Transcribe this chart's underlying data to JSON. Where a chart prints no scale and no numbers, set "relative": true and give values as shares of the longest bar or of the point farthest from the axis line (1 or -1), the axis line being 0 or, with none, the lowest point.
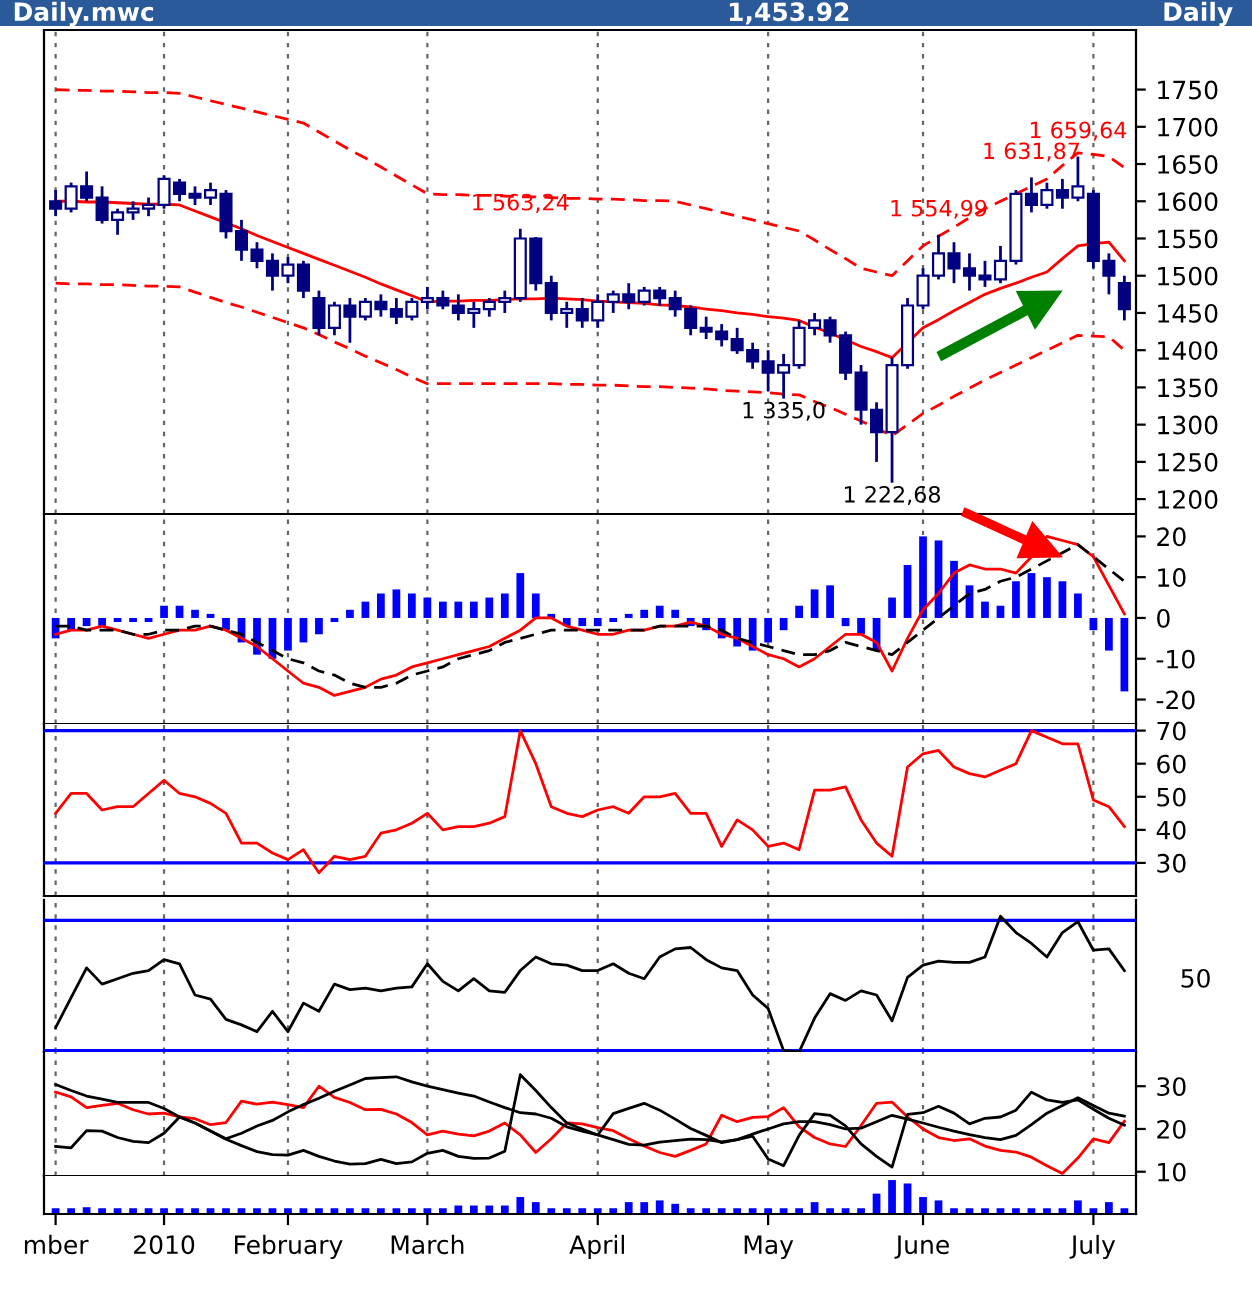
{
  "chart_data": [
    {
      "type": "candlestick",
      "title": "Daily.mwc",
      "subtitle": "1,453.92",
      "annotations": [
        "Daily",
        {
          "text": "1 563,24",
          "y": 1563
        },
        {
          "text": "1 554,99",
          "y": 1555
        },
        {
          "text": "1 631,87",
          "y": 1632
        },
        {
          "text": "1 659,64",
          "y": 1660
        },
        {
          "text": "1 335,0",
          "y": 1335
        },
        {
          "text": "1 222,68",
          "y": 1222
        }
      ],
      "categories": [
        null,
        null,
        null,
        null,
        null,
        null,
        null,
        null,
        null,
        null,
        null,
        null,
        null,
        null,
        null,
        null,
        null,
        null,
        null,
        null,
        null,
        null,
        null,
        null,
        null,
        null,
        null,
        null,
        null,
        null,
        null,
        null,
        null,
        null,
        null,
        null,
        null,
        null,
        null,
        null,
        null,
        null,
        null,
        null,
        null,
        null,
        null,
        null,
        null,
        null,
        null,
        null,
        null,
        null,
        null,
        null,
        null,
        null,
        null,
        null,
        null,
        null,
        null,
        null,
        null,
        null,
        null,
        null,
        null,
        null
      ],
      "ohlc": [
        [
          1600,
          1615,
          1580,
          1590
        ],
        [
          1590,
          1625,
          1585,
          1620
        ],
        [
          1620,
          1640,
          1600,
          1605
        ],
        [
          1605,
          1620,
          1570,
          1575
        ],
        [
          1575,
          1590,
          1555,
          1585
        ],
        [
          1585,
          1600,
          1575,
          1590
        ],
        [
          1590,
          1605,
          1580,
          1595
        ],
        [
          1595,
          1635,
          1590,
          1630
        ],
        [
          1625,
          1630,
          1600,
          1610
        ],
        [
          1610,
          1620,
          1595,
          1605
        ],
        [
          1605,
          1625,
          1595,
          1615
        ],
        [
          1610,
          1615,
          1550,
          1560
        ],
        [
          1560,
          1575,
          1520,
          1535
        ],
        [
          1535,
          1545,
          1510,
          1520
        ],
        [
          1520,
          1530,
          1480,
          1500
        ],
        [
          1500,
          1525,
          1490,
          1515
        ],
        [
          1515,
          1520,
          1470,
          1480
        ],
        [
          1470,
          1480,
          1420,
          1430
        ],
        [
          1430,
          1465,
          1420,
          1460
        ],
        [
          1460,
          1470,
          1410,
          1445
        ],
        [
          1445,
          1470,
          1440,
          1465
        ],
        [
          1465,
          1475,
          1445,
          1455
        ],
        [
          1455,
          1470,
          1435,
          1445
        ],
        [
          1445,
          1470,
          1440,
          1465
        ],
        [
          1465,
          1485,
          1455,
          1470
        ],
        [
          1470,
          1480,
          1455,
          1460
        ],
        [
          1460,
          1475,
          1440,
          1450
        ],
        [
          1450,
          1465,
          1430,
          1455
        ],
        [
          1455,
          1470,
          1445,
          1465
        ],
        [
          1465,
          1480,
          1450,
          1470
        ],
        [
          1470,
          1563,
          1465,
          1550
        ],
        [
          1550,
          1552,
          1480,
          1490
        ],
        [
          1490,
          1500,
          1440,
          1450
        ],
        [
          1450,
          1465,
          1430,
          1455
        ],
        [
          1455,
          1470,
          1430,
          1440
        ],
        [
          1440,
          1475,
          1430,
          1465
        ],
        [
          1465,
          1480,
          1450,
          1475
        ],
        [
          1475,
          1490,
          1455,
          1465
        ],
        [
          1465,
          1485,
          1460,
          1480
        ],
        [
          1480,
          1485,
          1460,
          1470
        ],
        [
          1470,
          1480,
          1445,
          1455
        ],
        [
          1455,
          1460,
          1420,
          1430
        ],
        [
          1430,
          1445,
          1415,
          1425
        ],
        [
          1425,
          1435,
          1405,
          1415
        ],
        [
          1415,
          1430,
          1395,
          1400
        ],
        [
          1400,
          1410,
          1375,
          1385
        ],
        [
          1385,
          1400,
          1345,
          1370
        ],
        [
          1370,
          1395,
          1335,
          1380
        ],
        [
          1380,
          1440,
          1375,
          1430
        ],
        [
          1430,
          1450,
          1420,
          1440
        ],
        [
          1440,
          1445,
          1410,
          1420
        ],
        [
          1420,
          1425,
          1360,
          1370
        ],
        [
          1370,
          1380,
          1300,
          1320
        ],
        [
          1320,
          1330,
          1250,
          1290
        ],
        [
          1290,
          1390,
          1222,
          1380
        ],
        [
          1380,
          1470,
          1375,
          1460
        ],
        [
          1460,
          1510,
          1455,
          1500
        ],
        [
          1500,
          1555,
          1495,
          1530
        ],
        [
          1530,
          1545,
          1490,
          1510
        ],
        [
          1510,
          1530,
          1480,
          1500
        ],
        [
          1500,
          1520,
          1485,
          1495
        ],
        [
          1495,
          1540,
          1490,
          1520
        ],
        [
          1520,
          1615,
          1515,
          1610
        ],
        [
          1610,
          1632,
          1585,
          1595
        ],
        [
          1595,
          1625,
          1590,
          1615
        ],
        [
          1615,
          1630,
          1590,
          1605
        ],
        [
          1605,
          1660,
          1600,
          1620
        ],
        [
          1610,
          1615,
          1510,
          1520
        ],
        [
          1520,
          1530,
          1475,
          1500
        ],
        [
          1490,
          1500,
          1440,
          1455
        ]
      ],
      "series": [
        {
          "type": "line",
          "color": "#ff0000",
          "line_style": "solid",
          "values": [
            1600,
            1600,
            1599,
            1599,
            1598,
            1597,
            1596,
            1596,
            1595,
            1587,
            1579,
            1571,
            1563,
            1554,
            1546,
            1538,
            1530,
            1522,
            1514,
            1506,
            1498,
            1489,
            1481,
            1473,
            1465,
            1466,
            1466,
            1467,
            1467,
            1468,
            1469,
            1469,
            1470,
            1469,
            1468,
            1466,
            1465,
            1464,
            1463,
            1461,
            1460,
            1458,
            1455,
            1453,
            1450,
            1448,
            1445,
            1443,
            1440,
            1431,
            1423,
            1414,
            1405,
            1398,
            1390,
            1410,
            1430,
            1441,
            1453,
            1464,
            1475,
            1483,
            1490,
            1498,
            1505,
            1523,
            1540,
            1543,
            1545,
            1520
          ]
        },
        {
          "type": "line",
          "color": "#ff0000",
          "line_style": "dashed",
          "values": [
            1750,
            1749,
            1749,
            1748,
            1748,
            1747,
            1746,
            1746,
            1745,
            1740,
            1735,
            1730,
            1725,
            1720,
            1715,
            1710,
            1705,
            1693,
            1681,
            1669,
            1658,
            1646,
            1634,
            1622,
            1610,
            1609,
            1609,
            1608,
            1608,
            1607,
            1606,
            1606,
            1605,
            1604,
            1604,
            1603,
            1603,
            1602,
            1601,
            1601,
            1600,
            1595,
            1590,
            1585,
            1580,
            1575,
            1570,
            1565,
            1560,
            1548,
            1535,
            1523,
            1510,
            1505,
            1500,
            1520,
            1540,
            1553,
            1565,
            1578,
            1590,
            1600,
            1610,
            1620,
            1630,
            1648,
            1665,
            1663,
            1660,
            1645
          ]
        },
        {
          "type": "line",
          "color": "#ff0000",
          "line_style": "dashed",
          "values": [
            1490,
            1489,
            1489,
            1488,
            1488,
            1487,
            1486,
            1486,
            1485,
            1478,
            1471,
            1464,
            1458,
            1451,
            1444,
            1437,
            1430,
            1421,
            1411,
            1402,
            1392,
            1383,
            1374,
            1364,
            1355,
            1355,
            1355,
            1355,
            1355,
            1355,
            1355,
            1355,
            1355,
            1354,
            1354,
            1353,
            1353,
            1352,
            1351,
            1351,
            1350,
            1349,
            1348,
            1346,
            1345,
            1344,
            1343,
            1341,
            1340,
            1331,
            1323,
            1314,
            1305,
            1295,
            1285,
            1300,
            1315,
            1326,
            1338,
            1349,
            1360,
            1370,
            1380,
            1390,
            1400,
            1410,
            1420,
            1419,
            1418,
            1400
          ]
        }
      ],
      "ylim": [
        1180,
        1830
      ],
      "yticks": [
        1200,
        1250,
        1300,
        1350,
        1400,
        1450,
        1500,
        1550,
        1600,
        1650,
        1700,
        1750
      ],
      "grid": "x",
      "tick_labels": "y"
    },
    {
      "type": "bar",
      "color": "#0000ff",
      "categories": [
        null,
        null,
        null,
        null,
        null,
        null,
        null,
        null,
        null,
        null,
        null,
        null,
        null,
        null,
        null,
        null,
        null,
        null,
        null,
        null,
        null,
        null,
        null,
        null,
        null,
        null,
        null,
        null,
        null,
        null,
        null,
        null,
        null,
        null,
        null,
        null,
        null,
        null,
        null,
        null,
        null,
        null,
        null,
        null,
        null,
        null,
        null,
        null,
        null,
        null,
        null,
        null,
        null,
        null,
        null,
        null,
        null,
        null,
        null,
        null,
        null,
        null,
        null,
        null,
        null,
        null,
        null,
        null,
        null,
        null
      ],
      "values": [
        -5,
        -3,
        -2,
        -2,
        -1,
        -1,
        -1,
        3,
        3,
        2,
        1,
        -3,
        -6,
        -9,
        -10,
        -8,
        -6,
        -4,
        -1,
        2,
        4,
        6,
        7,
        6,
        5,
        4,
        4,
        4,
        5,
        6,
        11,
        6,
        1,
        -2,
        -2,
        -2,
        -1,
        1,
        2,
        3,
        2,
        -2,
        -3,
        -5,
        -7,
        -8,
        -6,
        -3,
        3,
        7,
        8,
        -2,
        -4,
        -8,
        5,
        13,
        20,
        19,
        14,
        8,
        4,
        3,
        9,
        11,
        10,
        9,
        6,
        -3,
        -8,
        -18
      ],
      "series": [
        {
          "type": "line",
          "color": "#ff0000",
          "line_style": "solid",
          "values": [
            -4,
            -3,
            -3,
            -2,
            -3,
            -4,
            -5,
            -4,
            -3,
            -3,
            -2,
            -3,
            -5,
            -7,
            -10,
            -13,
            -16,
            -17,
            -19,
            -18,
            -17,
            -15,
            -14,
            -12,
            -11,
            -10,
            -9,
            -8,
            -7,
            -5,
            -3,
            0,
            0,
            -2,
            -3,
            -4,
            -4,
            -3,
            -3,
            -2,
            -2,
            -1,
            -2,
            -4,
            -5,
            -7,
            -9,
            -10,
            -12,
            -10,
            -7,
            -4,
            -4,
            -6,
            -13,
            -5,
            2,
            6,
            11,
            13,
            12,
            12,
            11,
            15,
            20,
            19,
            18,
            15,
            8,
            1
          ]
        },
        {
          "type": "line",
          "color": "#000000",
          "line_style": "dashed",
          "values": [
            -2,
            -2,
            -3,
            -3,
            -3,
            -4,
            -4,
            -3,
            -3,
            -2,
            -2,
            -3,
            -4,
            -6,
            -8,
            -10,
            -11,
            -13,
            -14,
            -16,
            -17,
            -17,
            -16,
            -14,
            -13,
            -12,
            -10,
            -9,
            -8,
            -6,
            -5,
            -4,
            -3,
            -3,
            -3,
            -3,
            -3,
            -3,
            -3,
            -2,
            -2,
            -2,
            -2,
            -3,
            -5,
            -6,
            -7,
            -8,
            -9,
            -9,
            -8,
            -6,
            -7,
            -8,
            -9,
            -6,
            -3,
            0,
            3,
            6,
            7,
            9,
            10,
            12,
            14,
            16,
            18,
            15,
            12,
            9
          ]
        }
      ],
      "ylim": [
        -26,
        25
      ],
      "yticks": [
        -20,
        -10,
        0,
        10,
        20
      ],
      "grid": "x",
      "tick_labels": "y"
    },
    {
      "type": "line",
      "categories": [
        null,
        null,
        null,
        null,
        null,
        null,
        null,
        null,
        null,
        null,
        null,
        null,
        null,
        null,
        null,
        null,
        null,
        null,
        null,
        null,
        null,
        null,
        null,
        null,
        null,
        null,
        null,
        null,
        null,
        null,
        null,
        null,
        null,
        null,
        null,
        null,
        null,
        null,
        null,
        null,
        null,
        null,
        null,
        null,
        null,
        null,
        null,
        null,
        null,
        null,
        null,
        null,
        null,
        null,
        null,
        null,
        null,
        null,
        null,
        null,
        null,
        null,
        null,
        null,
        null,
        null,
        null,
        null,
        null,
        null
      ],
      "series": [
        {
          "color": "#ff0000",
          "values": [
            45,
            51,
            51,
            46,
            47,
            47,
            51,
            55,
            51,
            50,
            48,
            45,
            36,
            36,
            33,
            31,
            34,
            27,
            32,
            31,
            32,
            39,
            40,
            42,
            45,
            40,
            41,
            41,
            42,
            44,
            70,
            60,
            47,
            45,
            44,
            46,
            47,
            45,
            50,
            50,
            51,
            45,
            45,
            35,
            43,
            40,
            35,
            36,
            34,
            52,
            52,
            53,
            43,
            36,
            32,
            59,
            63,
            64,
            59,
            57,
            56,
            58,
            60,
            70,
            68,
            66,
            66,
            49,
            47,
            41
          ]
        }
      ],
      "ref_lines": [
        {
          "axis": "y",
          "value": 70,
          "color": "#0000ff"
        },
        {
          "axis": "y",
          "value": 30,
          "color": "#0000ff"
        }
      ],
      "ylim": [
        20,
        72
      ],
      "yticks": [
        30,
        40,
        50,
        60,
        70
      ],
      "grid": "x",
      "tick_labels": "y"
    },
    {
      "type": "line",
      "relative": true,
      "annotations": [
        "50"
      ],
      "categories": [
        null,
        null,
        null,
        null,
        null,
        null,
        null,
        null,
        null,
        null,
        null,
        null,
        null,
        null,
        null,
        null,
        null,
        null,
        null,
        null,
        null,
        null,
        null,
        null,
        null,
        null,
        null,
        null,
        null,
        null,
        null,
        null,
        null,
        null,
        null,
        null,
        null,
        null,
        null,
        null,
        null,
        null,
        null,
        null,
        null,
        null,
        null,
        null,
        null,
        null,
        null,
        null,
        null,
        null,
        null,
        null,
        null,
        null,
        null,
        null,
        null,
        null,
        null,
        null,
        null,
        null,
        null,
        null,
        null,
        null
      ],
      "series": [
        {
          "color": "#000000",
          "values": [
            0.18,
            0.4,
            0.62,
            0.5,
            0.54,
            0.58,
            0.6,
            0.68,
            0.65,
            0.42,
            0.39,
            0.24,
            0.2,
            0.15,
            0.3,
            0.15,
            0.36,
            0.3,
            0.5,
            0.46,
            0.47,
            0.45,
            0.47,
            0.48,
            0.65,
            0.52,
            0.45,
            0.54,
            0.45,
            0.44,
            0.6,
            0.7,
            0.65,
            0.64,
            0.6,
            0.6,
            0.65,
            0.58,
            0.54,
            0.7,
            0.76,
            0.77,
            0.68,
            0.62,
            0.6,
            0.42,
            0.32,
            0.01,
            0,
            0.25,
            0.43,
            0.38,
            0.45,
            0.42,
            0.23,
            0.55,
            0.64,
            0.67,
            0.66,
            0.66,
            0.7,
            1,
            0.88,
            0.8,
            0.7,
            0.88,
            0.96,
            0.75,
            0.76,
            0.6
          ]
        }
      ],
      "ref_lines": [
        {
          "axis": "y",
          "value": 0.97,
          "color": "#0000ff"
        },
        {
          "axis": "y",
          "value": 0.01,
          "color": "#0000ff"
        }
      ],
      "grid": "x",
      "tick_labels": false
    },
    {
      "type": "line",
      "categories": [
        null,
        null,
        null,
        null,
        null,
        null,
        null,
        null,
        null,
        null,
        null,
        null,
        null,
        null,
        null,
        null,
        null,
        null,
        null,
        null,
        null,
        null,
        null,
        null,
        null,
        null,
        null,
        null,
        null,
        null,
        null,
        null,
        null,
        null,
        null,
        null,
        null,
        null,
        null,
        null,
        null,
        null,
        null,
        null,
        null,
        null,
        null,
        null,
        null,
        null,
        null,
        null,
        null,
        null,
        null,
        null,
        null,
        null,
        null,
        null,
        null,
        null,
        null,
        null,
        null,
        null,
        null,
        null,
        null,
        null
      ],
      "series": [
        {
          "color": "#ff0000",
          "values": [
            28.6,
            27.5,
            25,
            25.5,
            26,
            24.5,
            23.5,
            23.7,
            22.8,
            22.4,
            21,
            21.5,
            26.5,
            25.8,
            26.3,
            25.7,
            25,
            30,
            27.4,
            26.2,
            24.5,
            24.6,
            23.5,
            21.5,
            18.6,
            19.5,
            18.8,
            18.4,
            19.5,
            21.4,
            18.6,
            14.5,
            17.7,
            21.4,
            21.2,
            20.3,
            19.6,
            17.7,
            16,
            14.5,
            13.6,
            15,
            16.5,
            23.2,
            21.7,
            22.7,
            22.9,
            25,
            20.5,
            18,
            16.5,
            15.9,
            20.8,
            26,
            26.3,
            22.8,
            20,
            18,
            17.3,
            17.7,
            16,
            15,
            14.6,
            13.4,
            11.4,
            9.6,
            13.2,
            17.7,
            16.8,
            21.8
          ]
        },
        {
          "color": "#000000",
          "values": [
            30.4,
            29,
            27.7,
            27,
            26.2,
            26.2,
            26.2,
            24.8,
            22.8,
            21.4,
            19.5,
            17.7,
            19,
            20.7,
            22,
            24,
            25.7,
            27.2,
            28.8,
            30.3,
            31.8,
            32,
            32.2,
            31,
            30,
            29.2,
            28.4,
            27.7,
            26.3,
            25,
            23.8,
            23.5,
            22.5,
            20.5,
            19.5,
            18.6,
            17.5,
            16.4,
            16.2,
            16.9,
            17.3,
            17.6,
            17.5,
            17,
            17.5,
            18.8,
            20,
            21.2,
            21.7,
            21.7,
            21,
            20,
            20.2,
            21.7,
            23.2,
            22.3,
            21.4,
            20.4,
            19.5,
            18.7,
            18,
            17.5,
            18.5,
            21,
            23.7,
            25.5,
            27.3,
            25.5,
            23.7,
            23
          ]
        },
        {
          "color": "#000000",
          "values": [
            15.9,
            15.6,
            19.6,
            19.5,
            18,
            17.1,
            16.8,
            19,
            22.8,
            21.4,
            19.5,
            17.6,
            16.1,
            14.7,
            14,
            13.9,
            15,
            13.6,
            12.5,
            11.8,
            11.9,
            12.9,
            11.9,
            12.3,
            14.3,
            15,
            13.6,
            13.1,
            13.2,
            14.8,
            32.7,
            29,
            25,
            21.4,
            20,
            18.6,
            23.6,
            24.8,
            26,
            24.4,
            22.3,
            20.1,
            18.5,
            16.8,
            17.5,
            18.3,
            13,
            11.4,
            18.5,
            23.6,
            23.2,
            20.7,
            16.5,
            13.6,
            11.1,
            23.4,
            23.8,
            25.3,
            23.7,
            21.2,
            22.5,
            22.8,
            24.4,
            28.6,
            26.8,
            26.2,
            26.8,
            24.6,
            22.5,
            20.9
          ]
        }
      ],
      "ylim": [
        9,
        38
      ],
      "yticks": [
        10,
        20,
        30
      ],
      "grid": "x",
      "tick_labels": "y"
    },
    {
      "type": "bar",
      "relative": true,
      "color": "#0000ff",
      "categories": [
        "mber",
        null,
        null,
        null,
        null,
        null,
        null,
        "2010",
        null,
        null,
        null,
        null,
        null,
        null,
        null,
        "February",
        null,
        null,
        null,
        null,
        null,
        null,
        null,
        null,
        "March",
        null,
        null,
        null,
        null,
        null,
        null,
        null,
        null,
        null,
        null,
        "April",
        null,
        null,
        null,
        null,
        null,
        null,
        null,
        null,
        null,
        null,
        "May",
        null,
        null,
        null,
        null,
        null,
        null,
        null,
        null,
        null,
        "June",
        null,
        null,
        null,
        null,
        null,
        null,
        null,
        null,
        null,
        null,
        "July",
        null,
        null
      ],
      "values": [
        0.17,
        0.17,
        0.2,
        0.17,
        0.17,
        0.17,
        0.17,
        0.17,
        0.17,
        0.17,
        0.17,
        0.17,
        0.17,
        0.17,
        0.17,
        0.17,
        0.17,
        0.17,
        0.17,
        0.17,
        0.17,
        0.17,
        0.17,
        0.17,
        0.17,
        0.17,
        0.25,
        0.25,
        0.25,
        0.25,
        0.5,
        0.35,
        0.17,
        0.17,
        0.17,
        0.17,
        0.17,
        0.35,
        0.35,
        0.4,
        0.3,
        0.17,
        0.17,
        0.17,
        0.17,
        0.17,
        0.17,
        0.17,
        0.17,
        0.35,
        0.17,
        0.17,
        0.17,
        0.6,
        1,
        0.9,
        0.5,
        0.4,
        0.17,
        0.17,
        0.17,
        0.17,
        0.17,
        0.17,
        0.17,
        0.17,
        0.4,
        0.17,
        0.35,
        0.17
      ],
      "tick_labels": "x"
    }
  ]
}
